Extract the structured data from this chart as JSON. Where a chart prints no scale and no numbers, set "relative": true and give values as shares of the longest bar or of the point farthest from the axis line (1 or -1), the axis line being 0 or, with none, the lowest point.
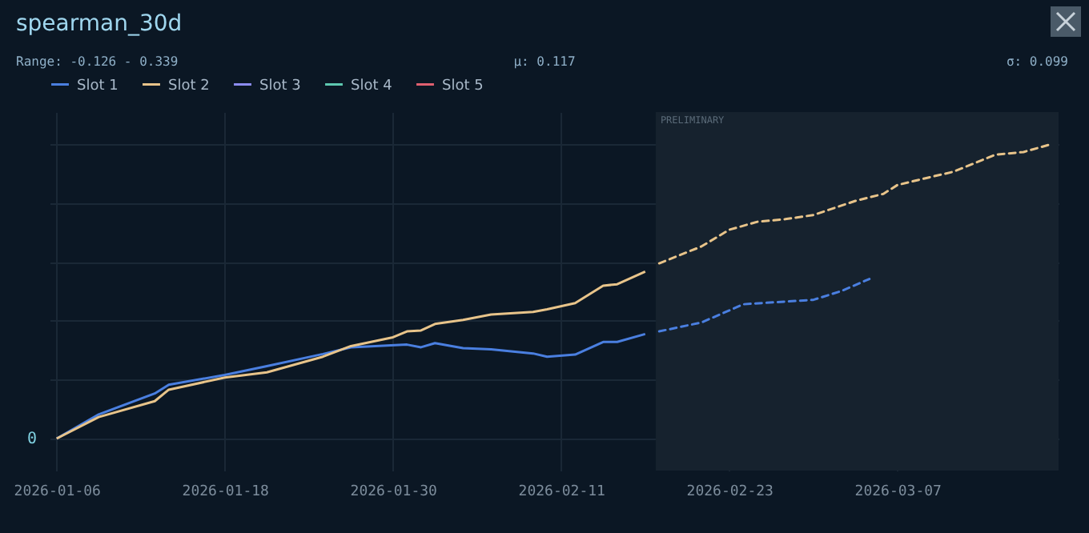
{
  "chart_data": {
    "type": "line",
    "title": "spearman_30d",
    "annotations": [
      "Range: -0.126 - 0.339",
      "μ: 0.117",
      "σ: 0.099",
      "0"
    ],
    "relative": true,
    "xlim": [
      "2026-01-05T12:00",
      "2026-03-18T12:00"
    ],
    "xticks": [
      "2026-01-06",
      "2026-01-18",
      "2026-01-30",
      "2026-02-11",
      "2026-02-23",
      "2026-03-07"
    ],
    "grid": true,
    "legend": "top",
    "marker": "none",
    "series": [
      {
        "name": "Slot 1",
        "color": "#4a7fe0",
        "line_style": "solid",
        "x": [
          "2026-01-06",
          "2026-01-09",
          "2026-01-13",
          "2026-01-14",
          "2026-01-18",
          "2026-01-21",
          "2026-01-25",
          "2026-01-27",
          "2026-01-31",
          "2026-02-01",
          "2026-02-02",
          "2026-02-04",
          "2026-02-06",
          "2026-02-09",
          "2026-02-10",
          "2026-02-12",
          "2026-02-14",
          "2026-02-15",
          "2026-02-17"
        ],
        "values": [
          0,
          0.082,
          0.153,
          0.183,
          0.216,
          0.246,
          0.287,
          0.31,
          0.319,
          0.31,
          0.324,
          0.307,
          0.303,
          0.289,
          0.278,
          0.285,
          0.328,
          0.328,
          0.355
        ]
      },
      {
        "name": "Slot 2",
        "color": "#e8c48a",
        "line_style": "solid",
        "x": [
          "2026-01-06",
          "2026-01-09",
          "2026-01-13",
          "2026-01-14",
          "2026-01-18",
          "2026-01-21",
          "2026-01-25",
          "2026-01-27",
          "2026-01-30",
          "2026-01-31",
          "2026-02-01",
          "2026-02-02",
          "2026-02-04",
          "2026-02-06",
          "2026-02-09",
          "2026-02-10",
          "2026-02-12",
          "2026-02-14",
          "2026-02-15",
          "2026-02-17"
        ],
        "values": [
          0,
          0.073,
          0.127,
          0.166,
          0.207,
          0.225,
          0.278,
          0.314,
          0.344,
          0.364,
          0.367,
          0.389,
          0.403,
          0.421,
          0.43,
          0.439,
          0.46,
          0.519,
          0.524,
          0.567
        ]
      },
      {
        "name": "Slot 3",
        "color": "#8c8cf0"
      },
      {
        "name": "Slot 4",
        "color": "#5ec8b0"
      },
      {
        "name": "Slot 5",
        "color": "#e06070"
      },
      {
        "color": "#4a7fe0",
        "line_style": "dashed",
        "x": [
          "2026-02-18",
          "2026-02-21",
          "2026-02-23",
          "2026-02-24",
          "2026-02-27",
          "2026-03-01",
          "2026-03-03",
          "2026-03-05"
        ],
        "values": [
          0.364,
          0.394,
          0.435,
          0.456,
          0.465,
          0.471,
          0.501,
          0.542
        ]
      },
      {
        "color": "#e8c48a",
        "line_style": "dashed",
        "x": [
          "2026-02-18",
          "2026-02-21",
          "2026-02-23",
          "2026-02-25",
          "2026-02-27",
          "2026-03-01",
          "2026-03-04",
          "2026-03-06",
          "2026-03-07",
          "2026-03-09",
          "2026-03-11",
          "2026-03-14",
          "2026-03-16",
          "2026-03-18"
        ],
        "values": [
          0.595,
          0.652,
          0.709,
          0.736,
          0.745,
          0.759,
          0.807,
          0.831,
          0.861,
          0.884,
          0.906,
          0.964,
          0.973,
          1.0
        ]
      }
    ],
    "bands": [
      {
        "axis": "x",
        "from": "2026-02-17T18:00",
        "to": "2026-03-18T12:00",
        "label": "PRELIMINARY",
        "color": "#16222e"
      }
    ]
  }
}
